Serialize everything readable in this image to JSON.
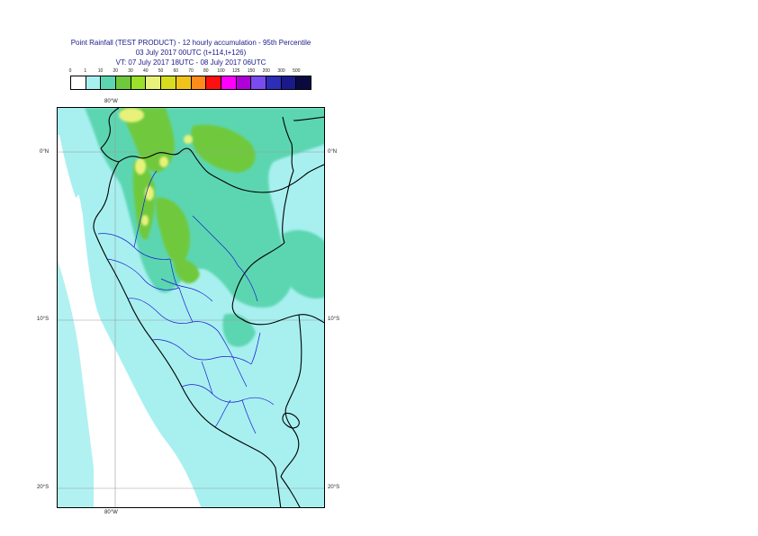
{
  "title": {
    "line1": "Point Rainfall (TEST PRODUCT) - 12 hourly accumulation - 95th Percentile",
    "line2": "03 July 2017 00UTC (t+114,t+126)",
    "line3": "VT: 07 July 2017 18UTC - 08 July 2017 06UTC"
  },
  "legend": {
    "labels": [
      "0",
      "1",
      "10",
      "20",
      "30",
      "40",
      "50",
      "60",
      "70",
      "80",
      "100",
      "125",
      "150",
      "200",
      "300",
      "500"
    ],
    "colors": [
      "#ffffff",
      "#a8f0f0",
      "#5cd6b0",
      "#6fc93c",
      "#9be02a",
      "#e8f27a",
      "#d7dc1e",
      "#f2c21a",
      "#ff8c1a",
      "#ff1010",
      "#ff00ff",
      "#b000d8",
      "#7a4cf0",
      "#2d2db8",
      "#1a1a8c",
      "#0a0a40"
    ]
  },
  "map": {
    "lat_labels": [
      "0°N",
      "10°S",
      "20°S"
    ],
    "lon_label_top": "80°W",
    "lon_label_bottom": "80°W"
  }
}
